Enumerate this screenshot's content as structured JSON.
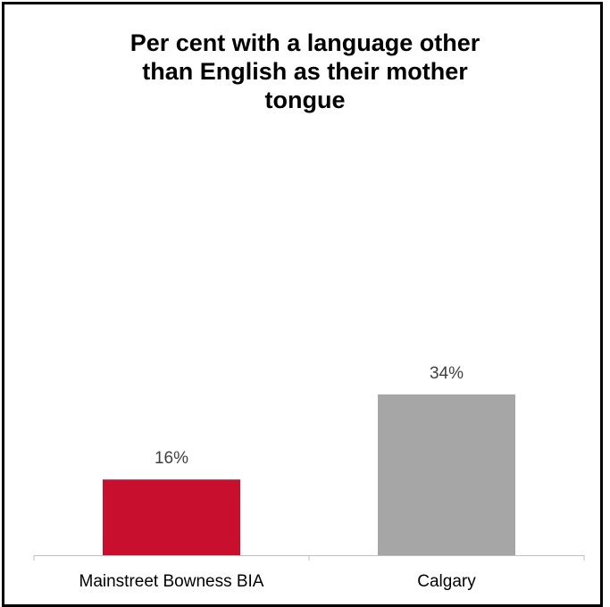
{
  "chart_data": {
    "type": "bar",
    "title_lines": [
      "Per cent with a language other",
      "than English as their mother",
      "tongue"
    ],
    "categories": [
      "Mainstreet Bowness BIA",
      "Calgary"
    ],
    "values": [
      16,
      34
    ],
    "value_labels": [
      "16%",
      "34%"
    ],
    "colors": [
      "#C8102E",
      "#A6A6A6"
    ],
    "ylim": [
      0,
      40
    ],
    "grid": false,
    "legend": "none",
    "xlabel": "",
    "ylabel": ""
  }
}
